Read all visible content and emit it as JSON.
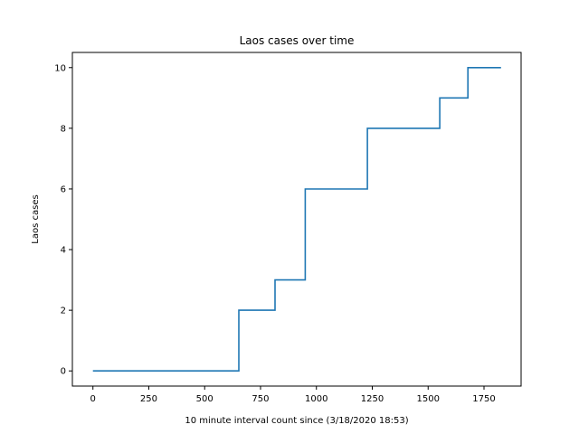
{
  "chart_data": {
    "type": "line",
    "step": "post",
    "title": "Laos cases over time",
    "xlabel": "10 minute interval count since (3/18/2020 18:53)",
    "ylabel": "Laos cases",
    "xlim": [
      -92,
      1916
    ],
    "ylim": [
      -0.5,
      10.5
    ],
    "xticks": [
      0,
      250,
      500,
      750,
      1000,
      1250,
      1500,
      1750
    ],
    "yticks": [
      0,
      2,
      4,
      6,
      8,
      10
    ],
    "grid": false,
    "legend": "none",
    "series": [
      {
        "color": "#1f77b4",
        "x": [
          0,
          653,
          815,
          950,
          1228,
          1552,
          1678,
          1826
        ],
        "y": [
          0,
          2,
          3,
          6,
          8,
          9,
          10,
          10
        ]
      }
    ]
  }
}
